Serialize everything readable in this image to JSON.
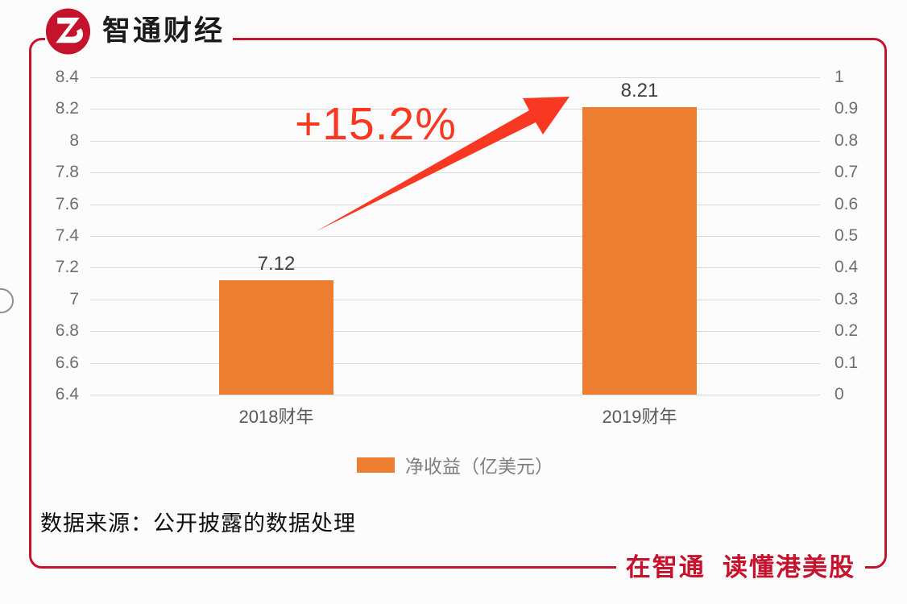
{
  "brand": {
    "logo_text": "智通财经",
    "tagline": "在智通  读懂港美股",
    "brand_red": "#c5122d"
  },
  "chart_data": {
    "type": "bar",
    "title": "",
    "categories": [
      "2018财年",
      "2019财年"
    ],
    "series": [
      {
        "name": "净收益（亿美元）",
        "values": [
          7.12,
          8.21
        ]
      }
    ],
    "data_labels": [
      "7.12",
      "8.21"
    ],
    "annotation": "+15.2%",
    "left_axis": {
      "min": 6.4,
      "max": 8.4,
      "step": 0.2,
      "ticks": [
        "8.4",
        "8.2",
        "8",
        "7.8",
        "7.6",
        "7.4",
        "7.2",
        "7",
        "6.8",
        "6.6",
        "6.4"
      ]
    },
    "right_axis": {
      "min": 0,
      "max": 1,
      "step": 0.1,
      "ticks": [
        "1",
        "0.9",
        "0.8",
        "0.7",
        "0.6",
        "0.5",
        "0.4",
        "0.3",
        "0.2",
        "0.1",
        "0"
      ]
    },
    "grid": true,
    "legend_position": "bottom",
    "bar_color": "#ed7d31",
    "arrow_color": "#f83822",
    "grid_color": "#d9d9d9"
  },
  "footer": {
    "source_note": "数据来源：公开披露的数据处理"
  }
}
